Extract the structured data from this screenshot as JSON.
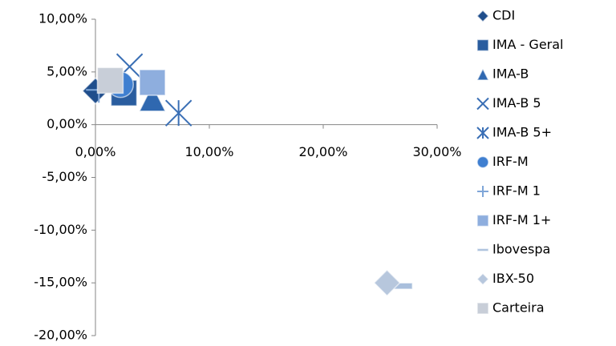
{
  "chart_data": {
    "type": "scatter",
    "xlim": [
      0,
      30
    ],
    "xticks": [
      {
        "value": 0,
        "label": "0,00%"
      },
      {
        "value": 10,
        "label": "10,00%"
      },
      {
        "value": 20,
        "label": "20,00%"
      },
      {
        "value": 30,
        "label": "30,00%"
      }
    ],
    "ylim": [
      -20,
      10
    ],
    "yticks": [
      {
        "value": -20,
        "label": "-20,00%"
      },
      {
        "value": -15,
        "label": "-15,00%"
      },
      {
        "value": -10,
        "label": "-10,00%"
      },
      {
        "value": -5,
        "label": "-5,00%"
      },
      {
        "value": 0,
        "label": "0,00%"
      },
      {
        "value": 5,
        "label": "5,00%"
      },
      {
        "value": 10,
        "label": "10,00%"
      }
    ],
    "grid": false,
    "legend": "right",
    "series": [
      {
        "name": "CDI",
        "color": "#1f4e8c",
        "marker": "diamond",
        "x": [
          0
        ],
        "values": [
          3.2
        ]
      },
      {
        "name": "IMA - Geral",
        "color": "#2a5d9f",
        "marker": "square",
        "x": [
          2.5
        ],
        "values": [
          3.0
        ]
      },
      {
        "name": "IMA-B",
        "color": "#2f68b0",
        "marker": "triangle",
        "x": [
          5.0
        ],
        "values": [
          2.5
        ]
      },
      {
        "name": "IMA-B 5",
        "color": "#3a6fb5",
        "marker": "x",
        "x": [
          3.0
        ],
        "values": [
          5.5
        ]
      },
      {
        "name": "IMA-B 5+",
        "color": "#3a6fb5",
        "marker": "star",
        "x": [
          7.3
        ],
        "values": [
          1.1
        ]
      },
      {
        "name": "IRF-M",
        "color": "#3f7fd0",
        "marker": "circle",
        "x": [
          2.2
        ],
        "values": [
          3.8
        ]
      },
      {
        "name": "IRF-M 1",
        "color": "#7fa6d8",
        "marker": "plus",
        "x": [
          0.3
        ],
        "values": [
          3.3
        ]
      },
      {
        "name": "IRF-M 1+",
        "color": "#8eaede",
        "marker": "square",
        "x": [
          5.0
        ],
        "values": [
          4.0
        ]
      },
      {
        "name": "Ibovespa",
        "color": "#a9bfdc",
        "marker": "dash",
        "x": [
          26.7
        ],
        "values": [
          -15.3
        ]
      },
      {
        "name": "IBX-50",
        "color": "#b7c7dd",
        "marker": "diamond",
        "x": [
          25.6
        ],
        "values": [
          -15.0
        ]
      },
      {
        "name": "Carteira",
        "color": "#c8ced8",
        "marker": "square",
        "x": [
          1.3
        ],
        "values": [
          4.2
        ]
      }
    ]
  }
}
